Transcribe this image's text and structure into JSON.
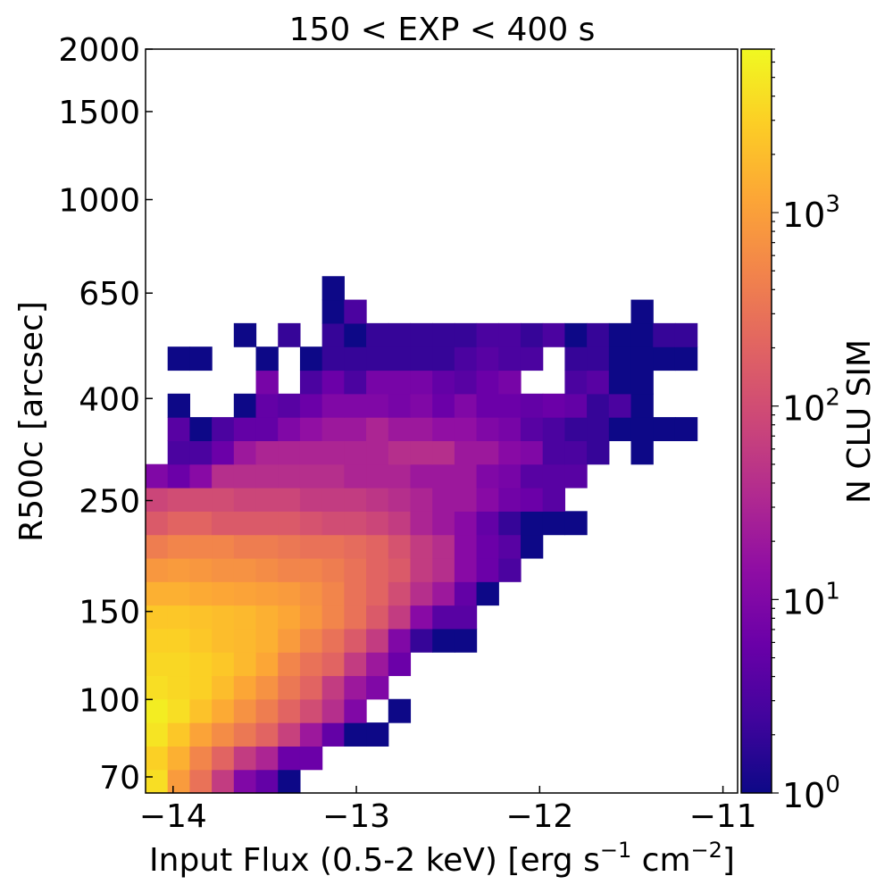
{
  "chart_data": {
    "type": "heatmap",
    "title": "150 < EXP < 400 s",
    "xlabel": "Input Flux (0.5-2 keV) [erg s",
    "xlabel_sup1": "−1",
    "xlabel_mid": " cm",
    "xlabel_sup2": "−2",
    "xlabel_end": "]",
    "ylabel": "R500c [arcsec]",
    "colorbar_label": "N CLU SIM",
    "colormap": "plasma",
    "color_scale": "log",
    "color_range": [
      1,
      7000
    ],
    "colorbar_ticks": [
      {
        "value": 1,
        "base": "10",
        "exp": "0"
      },
      {
        "value": 10,
        "base": "10",
        "exp": "1"
      },
      {
        "value": 100,
        "base": "10",
        "exp": "2"
      },
      {
        "value": 1000,
        "base": "10",
        "exp": "3"
      }
    ],
    "x_scale": "log-flux",
    "xlim": [
      -14.15,
      -10.92
    ],
    "x_ticks": [
      {
        "value": -14,
        "label": "−14"
      },
      {
        "value": -13,
        "label": "−13"
      },
      {
        "value": -12,
        "label": "−12"
      },
      {
        "value": -11,
        "label": "−11"
      }
    ],
    "y_scale": "log",
    "ylim": [
      65,
      2000
    ],
    "y_ticks": [
      {
        "value": 70,
        "label": "70"
      },
      {
        "value": 100,
        "label": "100"
      },
      {
        "value": 150,
        "label": "150"
      },
      {
        "value": 250,
        "label": "250"
      },
      {
        "value": 400,
        "label": "400"
      },
      {
        "value": 650,
        "label": "650"
      },
      {
        "value": 1000,
        "label": "1000"
      },
      {
        "value": 1500,
        "label": "1500"
      },
      {
        "value": 2000,
        "label": "2000"
      }
    ],
    "x_edges": [
      -14.15,
      -14.0296,
      -13.9093,
      -13.7889,
      -13.6686,
      -13.5482,
      -13.4278,
      -13.3075,
      -13.1871,
      -13.0668,
      -12.9464,
      -12.826,
      -12.7057,
      -12.5853,
      -12.4649,
      -12.3446,
      -12.2242,
      -12.1039,
      -11.9835,
      -11.8631,
      -11.7428,
      -11.6224,
      -11.5021,
      -11.3817,
      -11.2613,
      -11.141,
      -11.0206,
      -10.92
    ],
    "y_edges": [
      65,
      72.43,
      80.71,
      89.93,
      100.21,
      111.66,
      124.42,
      138.64,
      154.48,
      172.14,
      191.81,
      213.73,
      238.16,
      265.37,
      295.7,
      329.49,
      367.14,
      409.1,
      455.85,
      507.95,
      566.0,
      630.68,
      702.75,
      783.06,
      872.55,
      972.26,
      1083.36,
      1207.17,
      1345.12,
      1498.84,
      1670.12,
      1860.97,
      2000
    ],
    "values": [
      [
        4000,
        900,
        300,
        60,
        10,
        5,
        1,
        0,
        0,
        0,
        0,
        0,
        0,
        0,
        0,
        0,
        0,
        0,
        0,
        0,
        0,
        0,
        0,
        0,
        0,
        0,
        0
      ],
      [
        3000,
        1500,
        500,
        200,
        60,
        30,
        6,
        6,
        0,
        0,
        0,
        0,
        0,
        0,
        0,
        0,
        0,
        0,
        0,
        0,
        0,
        0,
        0,
        0,
        0,
        0,
        0
      ],
      [
        4500,
        2500,
        1100,
        600,
        350,
        200,
        70,
        20,
        5,
        1,
        1,
        0,
        0,
        0,
        0,
        0,
        0,
        0,
        0,
        0,
        0,
        0,
        0,
        0,
        0,
        0,
        0
      ],
      [
        5500,
        4000,
        2200,
        1300,
        700,
        400,
        200,
        100,
        40,
        10,
        0,
        1,
        0,
        0,
        0,
        0,
        0,
        0,
        0,
        0,
        0,
        0,
        0,
        0,
        0,
        0,
        0
      ],
      [
        4000,
        3500,
        3000,
        2000,
        1200,
        700,
        350,
        200,
        60,
        20,
        10,
        0,
        0,
        0,
        0,
        0,
        0,
        0,
        0,
        0,
        0,
        0,
        0,
        0,
        0,
        0,
        0
      ],
      [
        3500,
        3500,
        3000,
        2500,
        1800,
        1200,
        500,
        300,
        200,
        60,
        20,
        6,
        0,
        0,
        0,
        0,
        0,
        0,
        0,
        0,
        0,
        0,
        0,
        0,
        0,
        0,
        0
      ],
      [
        3000,
        3000,
        2500,
        2000,
        1800,
        1500,
        900,
        500,
        300,
        150,
        60,
        10,
        2,
        1,
        1,
        0,
        0,
        0,
        0,
        0,
        0,
        0,
        0,
        0,
        0,
        0,
        0
      ],
      [
        2500,
        2500,
        2200,
        2000,
        1800,
        1500,
        1200,
        800,
        500,
        300,
        150,
        60,
        12,
        4,
        4,
        0,
        0,
        0,
        0,
        0,
        0,
        0,
        0,
        0,
        0,
        0,
        0
      ],
      [
        1500,
        1500,
        1300,
        1200,
        1100,
        1000,
        900,
        700,
        500,
        300,
        200,
        100,
        40,
        20,
        5,
        1,
        0,
        0,
        0,
        0,
        0,
        0,
        0,
        0,
        0,
        0,
        0
      ],
      [
        800,
        900,
        800,
        700,
        700,
        600,
        500,
        500,
        400,
        300,
        200,
        150,
        60,
        40,
        12,
        6,
        3,
        0,
        0,
        0,
        0,
        0,
        0,
        0,
        0,
        0,
        0
      ],
      [
        400,
        500,
        500,
        500,
        400,
        400,
        350,
        300,
        300,
        250,
        200,
        120,
        60,
        40,
        12,
        6,
        4,
        1,
        0,
        0,
        0,
        0,
        0,
        0,
        0,
        0,
        0
      ],
      [
        150,
        200,
        200,
        150,
        150,
        150,
        150,
        120,
        100,
        100,
        80,
        60,
        30,
        20,
        12,
        5,
        2,
        1,
        1,
        1,
        0,
        0,
        0,
        0,
        0,
        0,
        0
      ],
      [
        80,
        100,
        100,
        100,
        80,
        80,
        80,
        60,
        60,
        60,
        50,
        40,
        30,
        20,
        20,
        12,
        7,
        6,
        4,
        0,
        0,
        0,
        0,
        0,
        0,
        0,
        0
      ],
      [
        10,
        6,
        12,
        40,
        40,
        40,
        40,
        40,
        40,
        30,
        30,
        30,
        20,
        20,
        20,
        10,
        8,
        4,
        4,
        4,
        0,
        0,
        0,
        0,
        0,
        0,
        0
      ],
      [
        0,
        3,
        3,
        6,
        20,
        30,
        30,
        30,
        30,
        30,
        30,
        40,
        40,
        40,
        20,
        20,
        12,
        10,
        3,
        3,
        2,
        0,
        1,
        0,
        0,
        0,
        0
      ],
      [
        0,
        4,
        1,
        3,
        5,
        5,
        10,
        15,
        20,
        20,
        30,
        20,
        20,
        15,
        15,
        10,
        8,
        4,
        3,
        2,
        2,
        1,
        1,
        1,
        1,
        0,
        0
      ],
      [
        0,
        1,
        0,
        0,
        1,
        5,
        4,
        6,
        10,
        10,
        10,
        8,
        10,
        6,
        10,
        6,
        6,
        5,
        6,
        5,
        2,
        3,
        1,
        0,
        0,
        0,
        0
      ],
      [
        0,
        0,
        0,
        0,
        0,
        8,
        0,
        3,
        6,
        3,
        8,
        8,
        8,
        5,
        4,
        6,
        8,
        0,
        0,
        3,
        4,
        1,
        1,
        0,
        0,
        0,
        0
      ],
      [
        0,
        1,
        1,
        0,
        0,
        1,
        0,
        1,
        2,
        2,
        2,
        2,
        2,
        2,
        3,
        4,
        3,
        3,
        0,
        2,
        2,
        1,
        1,
        1,
        1,
        0,
        0
      ],
      [
        0,
        0,
        0,
        0,
        1,
        0,
        2,
        0,
        2,
        1,
        2,
        2,
        2,
        2,
        2,
        3,
        3,
        2,
        3,
        1,
        2,
        1,
        1,
        2,
        2,
        0,
        0
      ],
      [
        0,
        0,
        0,
        0,
        0,
        0,
        0,
        0,
        1,
        3,
        0,
        0,
        0,
        0,
        0,
        0,
        0,
        0,
        0,
        0,
        0,
        0,
        1,
        0,
        0,
        0,
        0
      ],
      [
        0,
        0,
        0,
        0,
        0,
        0,
        0,
        0,
        1,
        0,
        0,
        0,
        0,
        0,
        0,
        0,
        0,
        0,
        0,
        0,
        0,
        0,
        0,
        0,
        0,
        0,
        0
      ],
      [
        0,
        0,
        0,
        0,
        0,
        0,
        0,
        0,
        0,
        0,
        0,
        0,
        0,
        0,
        0,
        0,
        0,
        0,
        0,
        0,
        0,
        0,
        0,
        0,
        0,
        0,
        0
      ],
      [
        0,
        0,
        0,
        0,
        0,
        0,
        0,
        0,
        0,
        0,
        0,
        0,
        0,
        0,
        0,
        0,
        0,
        0,
        0,
        0,
        0,
        0,
        0,
        0,
        0,
        0,
        0
      ],
      [
        0,
        0,
        0,
        0,
        0,
        0,
        0,
        0,
        0,
        0,
        0,
        0,
        0,
        0,
        0,
        0,
        0,
        0,
        0,
        0,
        0,
        0,
        0,
        0,
        0,
        0,
        0
      ],
      [
        0,
        0,
        0,
        0,
        0,
        0,
        0,
        0,
        0,
        0,
        0,
        0,
        0,
        0,
        0,
        0,
        0,
        0,
        0,
        0,
        0,
        0,
        0,
        0,
        0,
        0,
        0
      ],
      [
        0,
        0,
        0,
        0,
        0,
        0,
        0,
        0,
        0,
        0,
        0,
        0,
        0,
        0,
        0,
        0,
        0,
        0,
        0,
        0,
        0,
        0,
        0,
        0,
        0,
        0,
        0
      ],
      [
        0,
        0,
        0,
        0,
        0,
        0,
        0,
        0,
        0,
        0,
        0,
        0,
        0,
        0,
        0,
        0,
        0,
        0,
        0,
        0,
        0,
        0,
        0,
        0,
        0,
        0,
        0
      ],
      [
        0,
        0,
        0,
        0,
        0,
        0,
        0,
        0,
        0,
        0,
        0,
        0,
        0,
        0,
        0,
        0,
        0,
        0,
        0,
        0,
        0,
        0,
        0,
        0,
        0,
        0,
        0
      ],
      [
        0,
        0,
        0,
        0,
        0,
        0,
        0,
        0,
        0,
        0,
        0,
        0,
        0,
        0,
        0,
        0,
        0,
        0,
        0,
        0,
        0,
        0,
        0,
        0,
        0,
        0,
        0
      ],
      [
        0,
        0,
        0,
        0,
        0,
        0,
        0,
        0,
        0,
        0,
        0,
        0,
        0,
        0,
        0,
        0,
        0,
        0,
        0,
        0,
        0,
        0,
        0,
        0,
        0,
        0,
        0
      ],
      [
        0,
        0,
        0,
        0,
        0,
        0,
        0,
        0,
        0,
        0,
        0,
        0,
        0,
        0,
        0,
        0,
        0,
        0,
        0,
        0,
        0,
        0,
        0,
        0,
        0,
        0,
        0
      ]
    ]
  }
}
